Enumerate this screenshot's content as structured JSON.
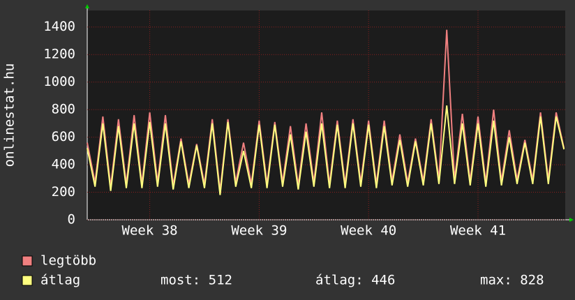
{
  "chart_data": {
    "type": "line",
    "ylabel": "onlinestat.hu",
    "categories": [
      null,
      null,
      null,
      null,
      null,
      null,
      null,
      null,
      "Week 38",
      null,
      null,
      null,
      null,
      null,
      null,
      null,
      null,
      null,
      null,
      null,
      null,
      null,
      "Week 39",
      null,
      null,
      null,
      null,
      null,
      null,
      null,
      null,
      null,
      null,
      null,
      null,
      null,
      "Week 40",
      null,
      null,
      null,
      null,
      null,
      null,
      null,
      null,
      null,
      null,
      null,
      null,
      null,
      "Week 41",
      null,
      null,
      null,
      null,
      null,
      null,
      null,
      null,
      null,
      null,
      null
    ],
    "series": [
      {
        "name": "legtöbb",
        "color": "#f08080",
        "values": [
          560,
          270,
          750,
          240,
          730,
          260,
          760,
          260,
          780,
          270,
          760,
          250,
          590,
          260,
          550,
          260,
          730,
          210,
          730,
          270,
          560,
          260,
          720,
          260,
          710,
          270,
          680,
          250,
          700,
          270,
          780,
          260,
          720,
          260,
          730,
          270,
          720,
          260,
          720,
          280,
          620,
          270,
          590,
          280,
          730,
          290,
          1380,
          290,
          770,
          280,
          750,
          270,
          800,
          280,
          650,
          290,
          580,
          290,
          780,
          290,
          780,
          520
        ]
      },
      {
        "name": "átlag",
        "color": "#ffff80",
        "values": [
          520,
          240,
          700,
          210,
          680,
          230,
          700,
          230,
          710,
          240,
          700,
          220,
          570,
          230,
          540,
          230,
          700,
          180,
          710,
          240,
          500,
          230,
          690,
          230,
          690,
          240,
          620,
          220,
          640,
          240,
          700,
          230,
          690,
          230,
          700,
          240,
          690,
          230,
          680,
          250,
          580,
          240,
          570,
          250,
          700,
          260,
          830,
          260,
          700,
          250,
          700,
          240,
          720,
          250,
          600,
          260,
          560,
          260,
          750,
          260,
          750,
          512
        ]
      }
    ],
    "stats": [
      "most: 512",
      "átlag: 446",
      "max: 828"
    ],
    "ylim": [
      0,
      1500
    ],
    "yticks": [
      0,
      200,
      400,
      600,
      800,
      1000,
      1200,
      1400
    ],
    "grid": true
  }
}
